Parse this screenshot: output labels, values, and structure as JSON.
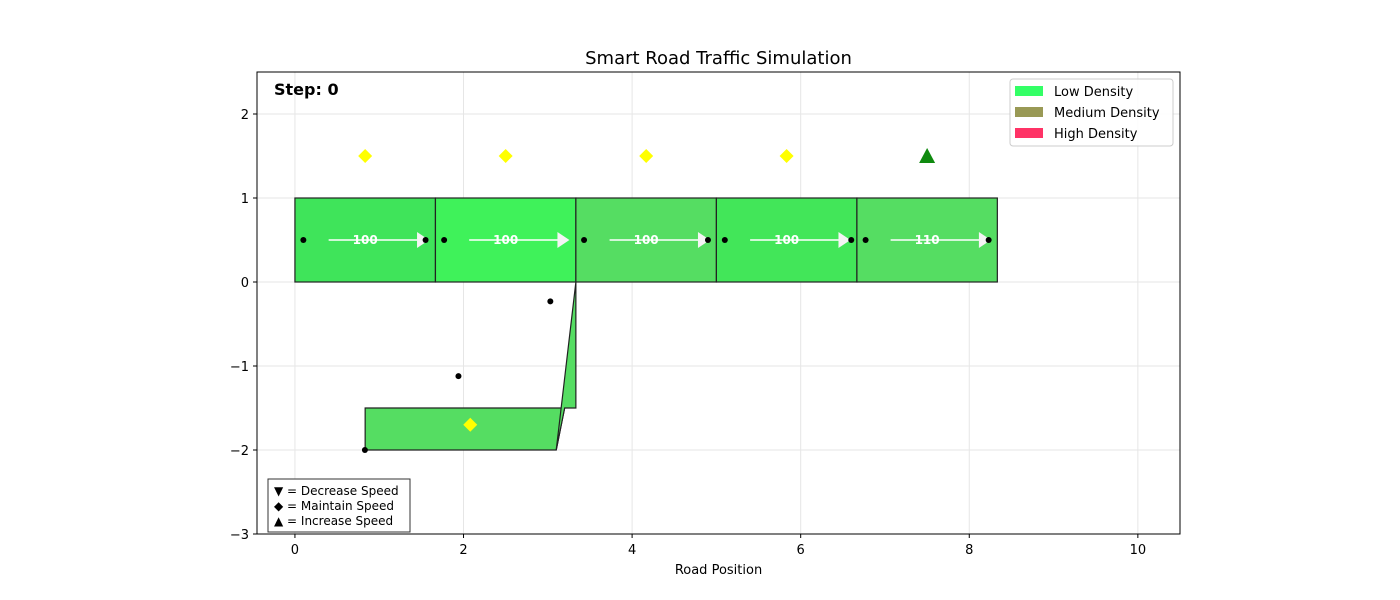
{
  "chart_data": {
    "type": "scatter",
    "title": "Smart Road Traffic Simulation",
    "xlabel": "Road Position",
    "ylabel": "",
    "xlim": [
      -0.45,
      10.5
    ],
    "ylim": [
      -3,
      2.5
    ],
    "xticks": [
      0,
      2,
      4,
      6,
      8,
      10
    ],
    "xtick_labels": [
      "0",
      "2",
      "4",
      "6",
      "8",
      "10"
    ],
    "yticks": [
      2,
      1,
      0,
      -1,
      -2,
      -3
    ],
    "ytick_labels": [
      "2",
      "1",
      "0",
      "−1",
      "−2",
      "−3"
    ],
    "grid": true,
    "step_label": "Step: 0",
    "segments": [
      {
        "x0": 0.0,
        "x1": 1.667,
        "speed": "100",
        "color": "#3fe45a"
      },
      {
        "x0": 1.667,
        "x1": 3.333,
        "speed": "100",
        "color": "#3ff25a"
      },
      {
        "x0": 3.333,
        "x1": 5.0,
        "speed": "100",
        "color": "#55dd62"
      },
      {
        "x0": 5.0,
        "x1": 6.667,
        "speed": "100",
        "color": "#42e659"
      },
      {
        "x0": 6.667,
        "x1": 8.333,
        "speed": "110",
        "color": "#55dd62"
      }
    ],
    "segment_y": [
      0,
      1
    ],
    "ramp": {
      "color": "#55dd62",
      "connector": [
        [
          3.333,
          0
        ],
        [
          3.333,
          -1.5
        ],
        [
          3.2,
          -1.5
        ],
        [
          3.1,
          -2
        ]
      ],
      "box": [
        [
          0.833,
          -1.5
        ],
        [
          3.2,
          -1.5
        ],
        [
          3.1,
          -2
        ],
        [
          0.833,
          -2
        ]
      ]
    },
    "vehicles": [
      {
        "x": 0.1,
        "y": 0.5
      },
      {
        "x": 1.55,
        "y": 0.5
      },
      {
        "x": 1.77,
        "y": 0.5
      },
      {
        "x": 3.43,
        "y": 0.5
      },
      {
        "x": 4.9,
        "y": 0.5
      },
      {
        "x": 5.1,
        "y": 0.5
      },
      {
        "x": 6.6,
        "y": 0.5
      },
      {
        "x": 6.77,
        "y": 0.5
      },
      {
        "x": 8.23,
        "y": 0.5
      },
      {
        "x": 3.03,
        "y": -0.23
      },
      {
        "x": 1.94,
        "y": -1.12
      },
      {
        "x": 0.83,
        "y": -2.0
      }
    ],
    "actions": [
      {
        "x": 0.833,
        "y": 1.5,
        "marker": "diamond",
        "color": "#ffff00"
      },
      {
        "x": 2.5,
        "y": 1.5,
        "marker": "diamond",
        "color": "#ffff00"
      },
      {
        "x": 4.167,
        "y": 1.5,
        "marker": "diamond",
        "color": "#ffff00"
      },
      {
        "x": 5.833,
        "y": 1.5,
        "marker": "diamond",
        "color": "#ffff00"
      },
      {
        "x": 7.5,
        "y": 1.5,
        "marker": "triangle-up",
        "color": "#0f8a0f"
      },
      {
        "x": 2.08,
        "y": -1.7,
        "marker": "diamond",
        "color": "#ffff00"
      }
    ],
    "legend": {
      "placement": "top-right",
      "entries": [
        {
          "label": "Low Density",
          "color": "#33ff66"
        },
        {
          "label": "Medium Density",
          "color": "#999955"
        },
        {
          "label": "High Density",
          "color": "#ff3366"
        }
      ]
    },
    "action_key": {
      "placement": "bottom-left",
      "lines": [
        "▼ = Decrease Speed",
        "◆ = Maintain Speed",
        "▲ = Increase Speed"
      ]
    }
  }
}
